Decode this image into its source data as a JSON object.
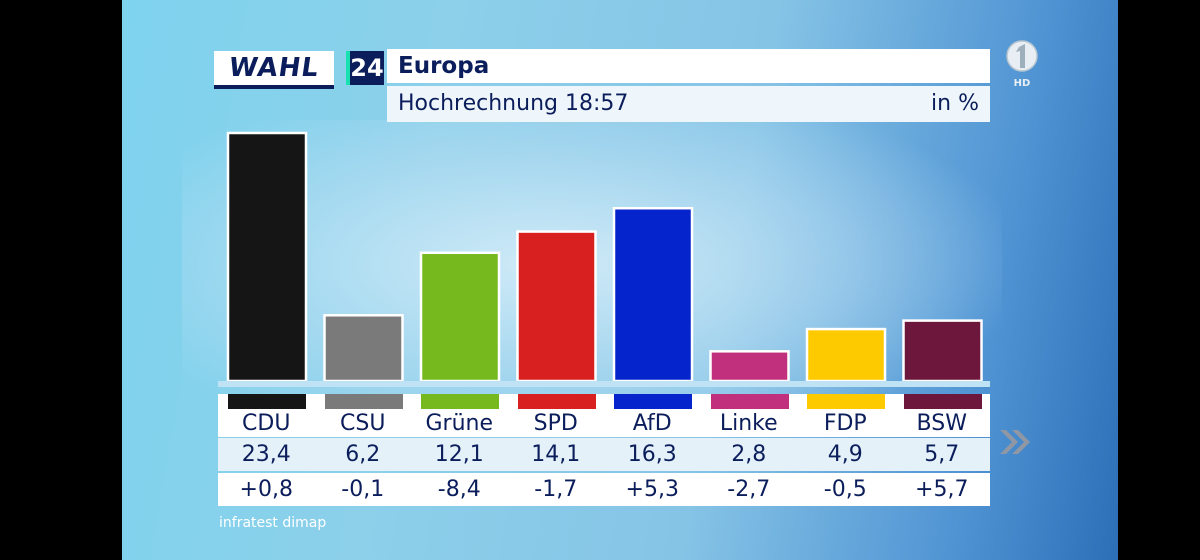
{
  "header": {
    "logo_word": "WAHL",
    "logo_number": "24",
    "title": "Europa",
    "subtitle": "Hochrechnung 18:57",
    "unit": "in %"
  },
  "channel": {
    "label": "HD"
  },
  "source": "infratest dimap",
  "colors": {
    "CDU": "#151515",
    "CSU": "#7a7a7a",
    "Grüne": "#76b91f",
    "SPD": "#d7201f",
    "AfD": "#0524cc",
    "Linke": "#c0307c",
    "FDP": "#fdca00",
    "BSW": "#6c173b"
  },
  "chart_data": {
    "type": "bar",
    "title": "Europa – Hochrechnung 18:57",
    "ylabel": "in %",
    "ylim": [
      0,
      23.4
    ],
    "categories": [
      "CDU",
      "CSU",
      "Grüne",
      "SPD",
      "AfD",
      "Linke",
      "FDP",
      "BSW"
    ],
    "values": [
      23.4,
      6.2,
      12.1,
      14.1,
      16.3,
      2.8,
      4.9,
      5.7
    ],
    "value_labels": [
      "23,4",
      "6,2",
      "12,1",
      "14,1",
      "16,3",
      "2,8",
      "4,9",
      "5,7"
    ],
    "changes": [
      "+0,8",
      "-0,1",
      "-8,4",
      "-1,7",
      "+5,3",
      "-2,7",
      "-0,5",
      "+5,7"
    ]
  }
}
